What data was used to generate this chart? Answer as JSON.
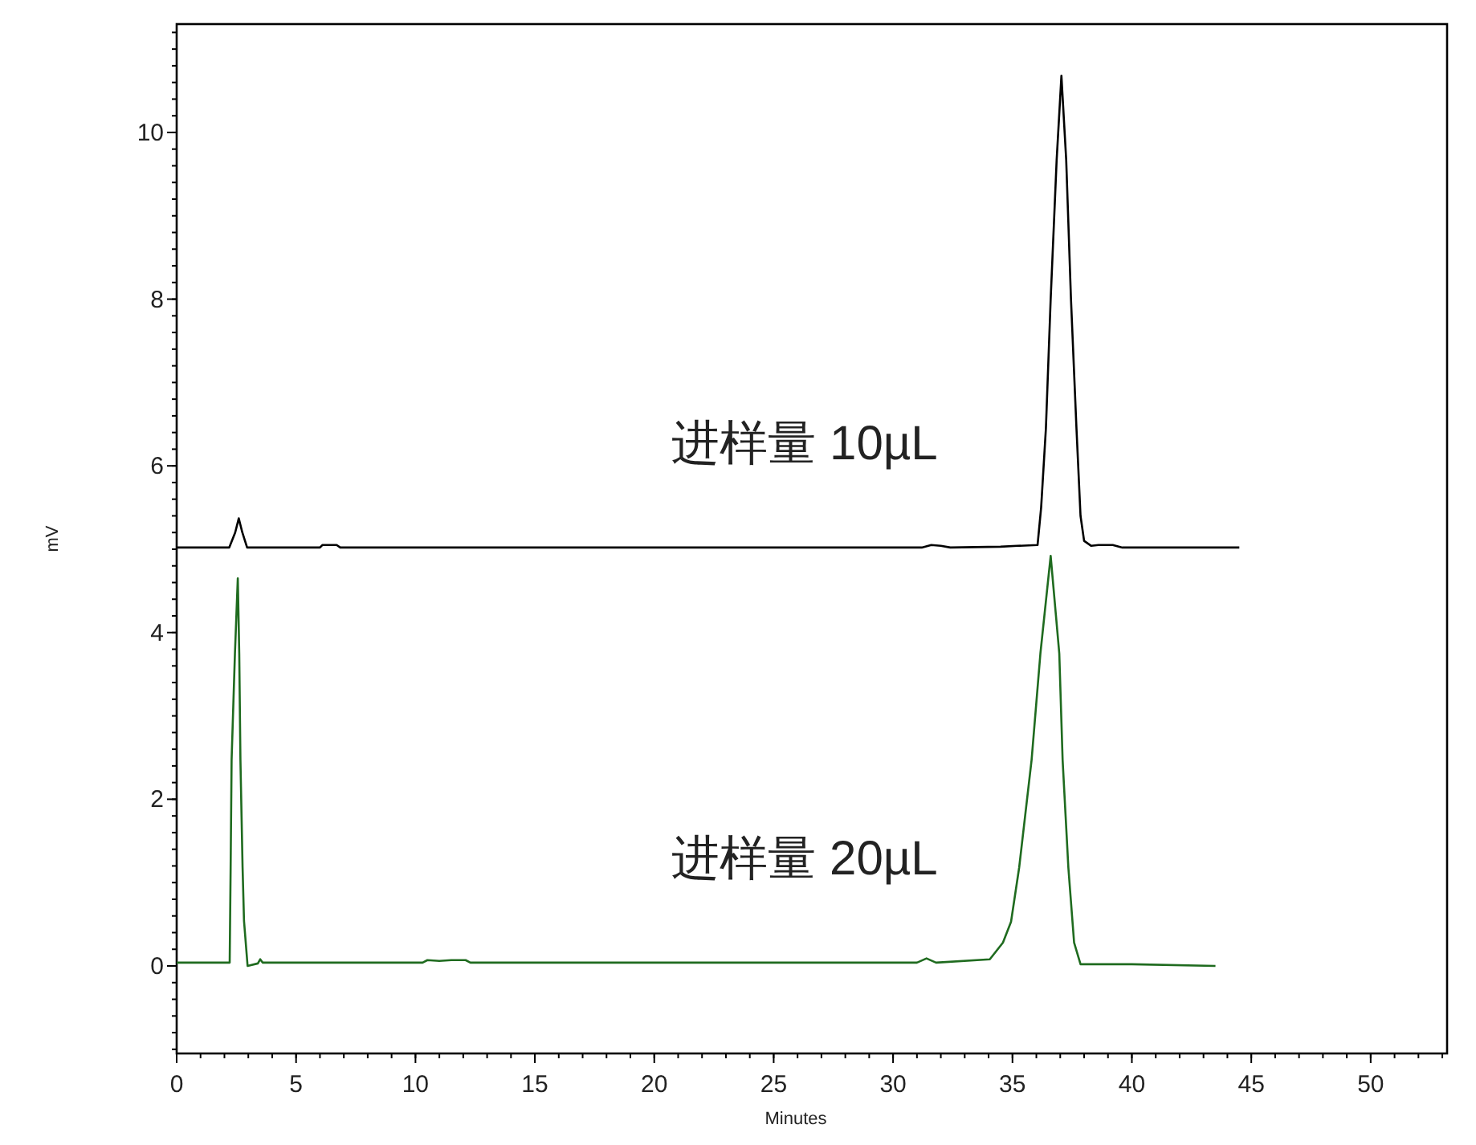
{
  "chart_data": {
    "type": "line",
    "xlabel": "Minutes",
    "ylabel": "mV",
    "xlim": [
      0,
      53.2
    ],
    "ylim": [
      -1.05,
      11.3
    ],
    "xticks": [
      0,
      5,
      10,
      15,
      20,
      25,
      30,
      35,
      40,
      45,
      50
    ],
    "yticks": [
      0,
      2,
      4,
      6,
      8,
      10
    ],
    "grid": false,
    "legend": false,
    "marker": "none",
    "line_style": "solid",
    "series": [
      {
        "name": "进样量 10µL",
        "color": "#000000",
        "x": [
          0,
          2.2,
          2.45,
          2.6,
          2.75,
          2.95,
          6.0,
          6.1,
          6.7,
          6.85,
          31.2,
          31.6,
          32.0,
          32.4,
          34.5,
          35.2,
          36.05,
          36.2,
          36.4,
          36.6,
          36.85,
          37.05,
          37.25,
          37.45,
          37.68,
          37.85,
          38.0,
          38.3,
          38.6,
          39.2,
          39.6,
          44.5
        ],
        "values": [
          5.02,
          5.02,
          5.2,
          5.37,
          5.2,
          5.02,
          5.02,
          5.05,
          5.05,
          5.02,
          5.02,
          5.05,
          5.04,
          5.02,
          5.03,
          5.04,
          5.05,
          5.5,
          6.45,
          8.0,
          9.67,
          10.68,
          9.67,
          8.0,
          6.45,
          5.4,
          5.1,
          5.04,
          5.05,
          5.05,
          5.02,
          5.02
        ]
      },
      {
        "name": "进样量 20µL",
        "color": "#1f6b1f",
        "x": [
          0,
          2.22,
          2.26,
          2.3,
          2.44,
          2.56,
          2.62,
          2.67,
          2.76,
          2.82,
          2.97,
          3.4,
          3.5,
          3.6,
          10.3,
          10.5,
          11.0,
          11.5,
          12.1,
          12.3,
          31.0,
          31.4,
          31.8,
          34.05,
          34.6,
          34.94,
          35.28,
          35.8,
          36.17,
          36.6,
          36.96,
          37.1,
          37.34,
          37.58,
          37.85,
          40.0,
          43.5
        ],
        "values": [
          0.04,
          0.04,
          1.18,
          2.47,
          3.75,
          4.65,
          3.75,
          2.47,
          1.18,
          0.54,
          0.0,
          0.03,
          0.08,
          0.04,
          0.04,
          0.07,
          0.06,
          0.07,
          0.07,
          0.04,
          0.04,
          0.09,
          0.04,
          0.08,
          0.28,
          0.53,
          1.18,
          2.47,
          3.75,
          4.92,
          3.75,
          2.47,
          1.18,
          0.28,
          0.02,
          0.02,
          0.0
        ]
      }
    ]
  }
}
